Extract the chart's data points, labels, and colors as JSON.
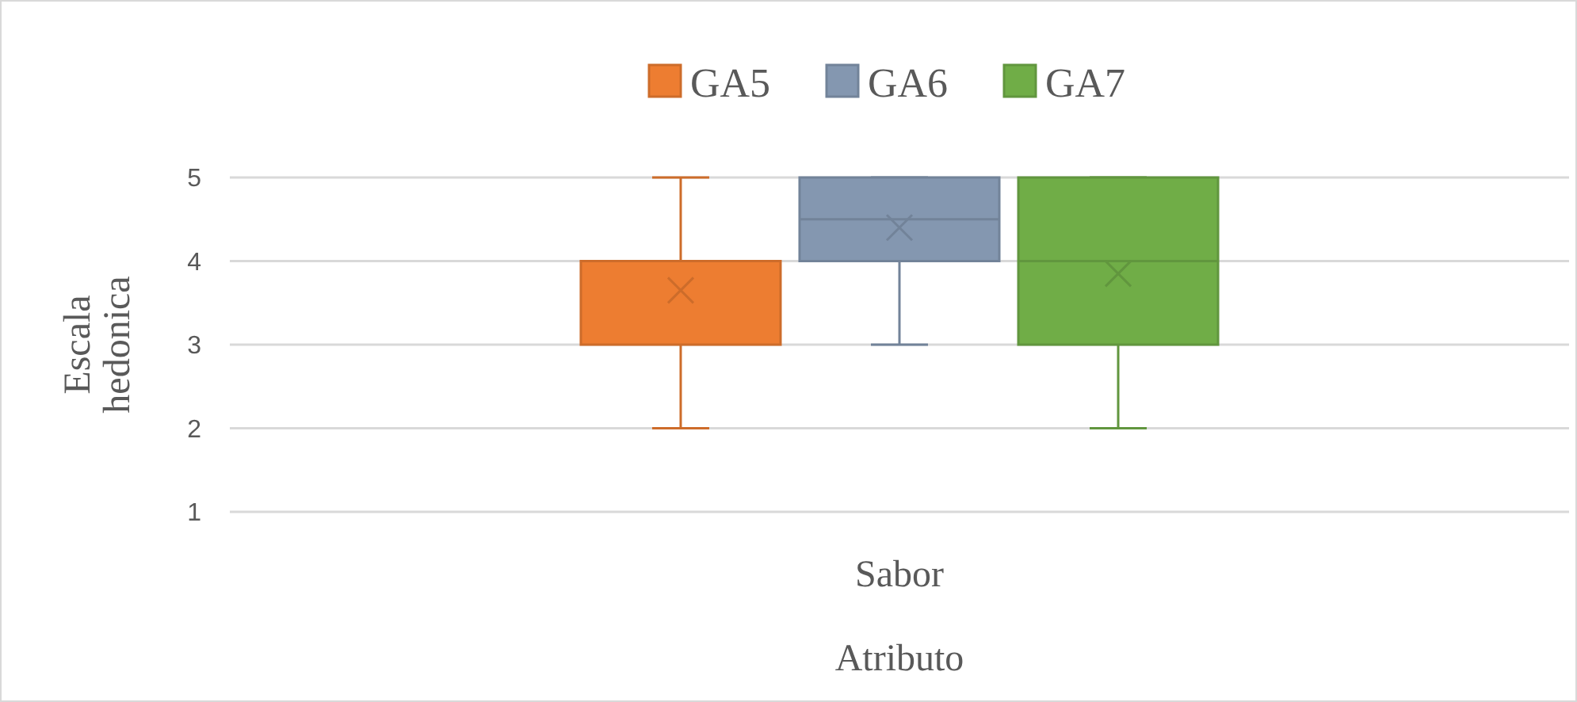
{
  "chart_data": {
    "type": "box",
    "xlabel": "Atributo",
    "ylabel": "Escala hedonica",
    "categories": [
      "Sabor"
    ],
    "series": [
      {
        "name": "GA5",
        "color": "#ed7d31",
        "boxes": [
          {
            "low": 2,
            "q1": 3,
            "median": 4,
            "q3": 4,
            "high": 5,
            "mean": 3.65
          }
        ]
      },
      {
        "name": "GA6",
        "color": "#8497b0",
        "boxes": [
          {
            "low": 3,
            "q1": 4,
            "median": 4.5,
            "q3": 5,
            "high": 5,
            "mean": 4.4
          }
        ]
      },
      {
        "name": "GA7",
        "color": "#70ad47",
        "boxes": [
          {
            "low": 2,
            "q1": 3,
            "median": 4,
            "q3": 5,
            "high": 5,
            "mean": 3.85
          }
        ]
      }
    ],
    "ylim": [
      1,
      5
    ],
    "yticks": [
      1,
      2,
      3,
      4,
      5
    ],
    "grid": "y",
    "legend": "top",
    "marker": "cross"
  }
}
